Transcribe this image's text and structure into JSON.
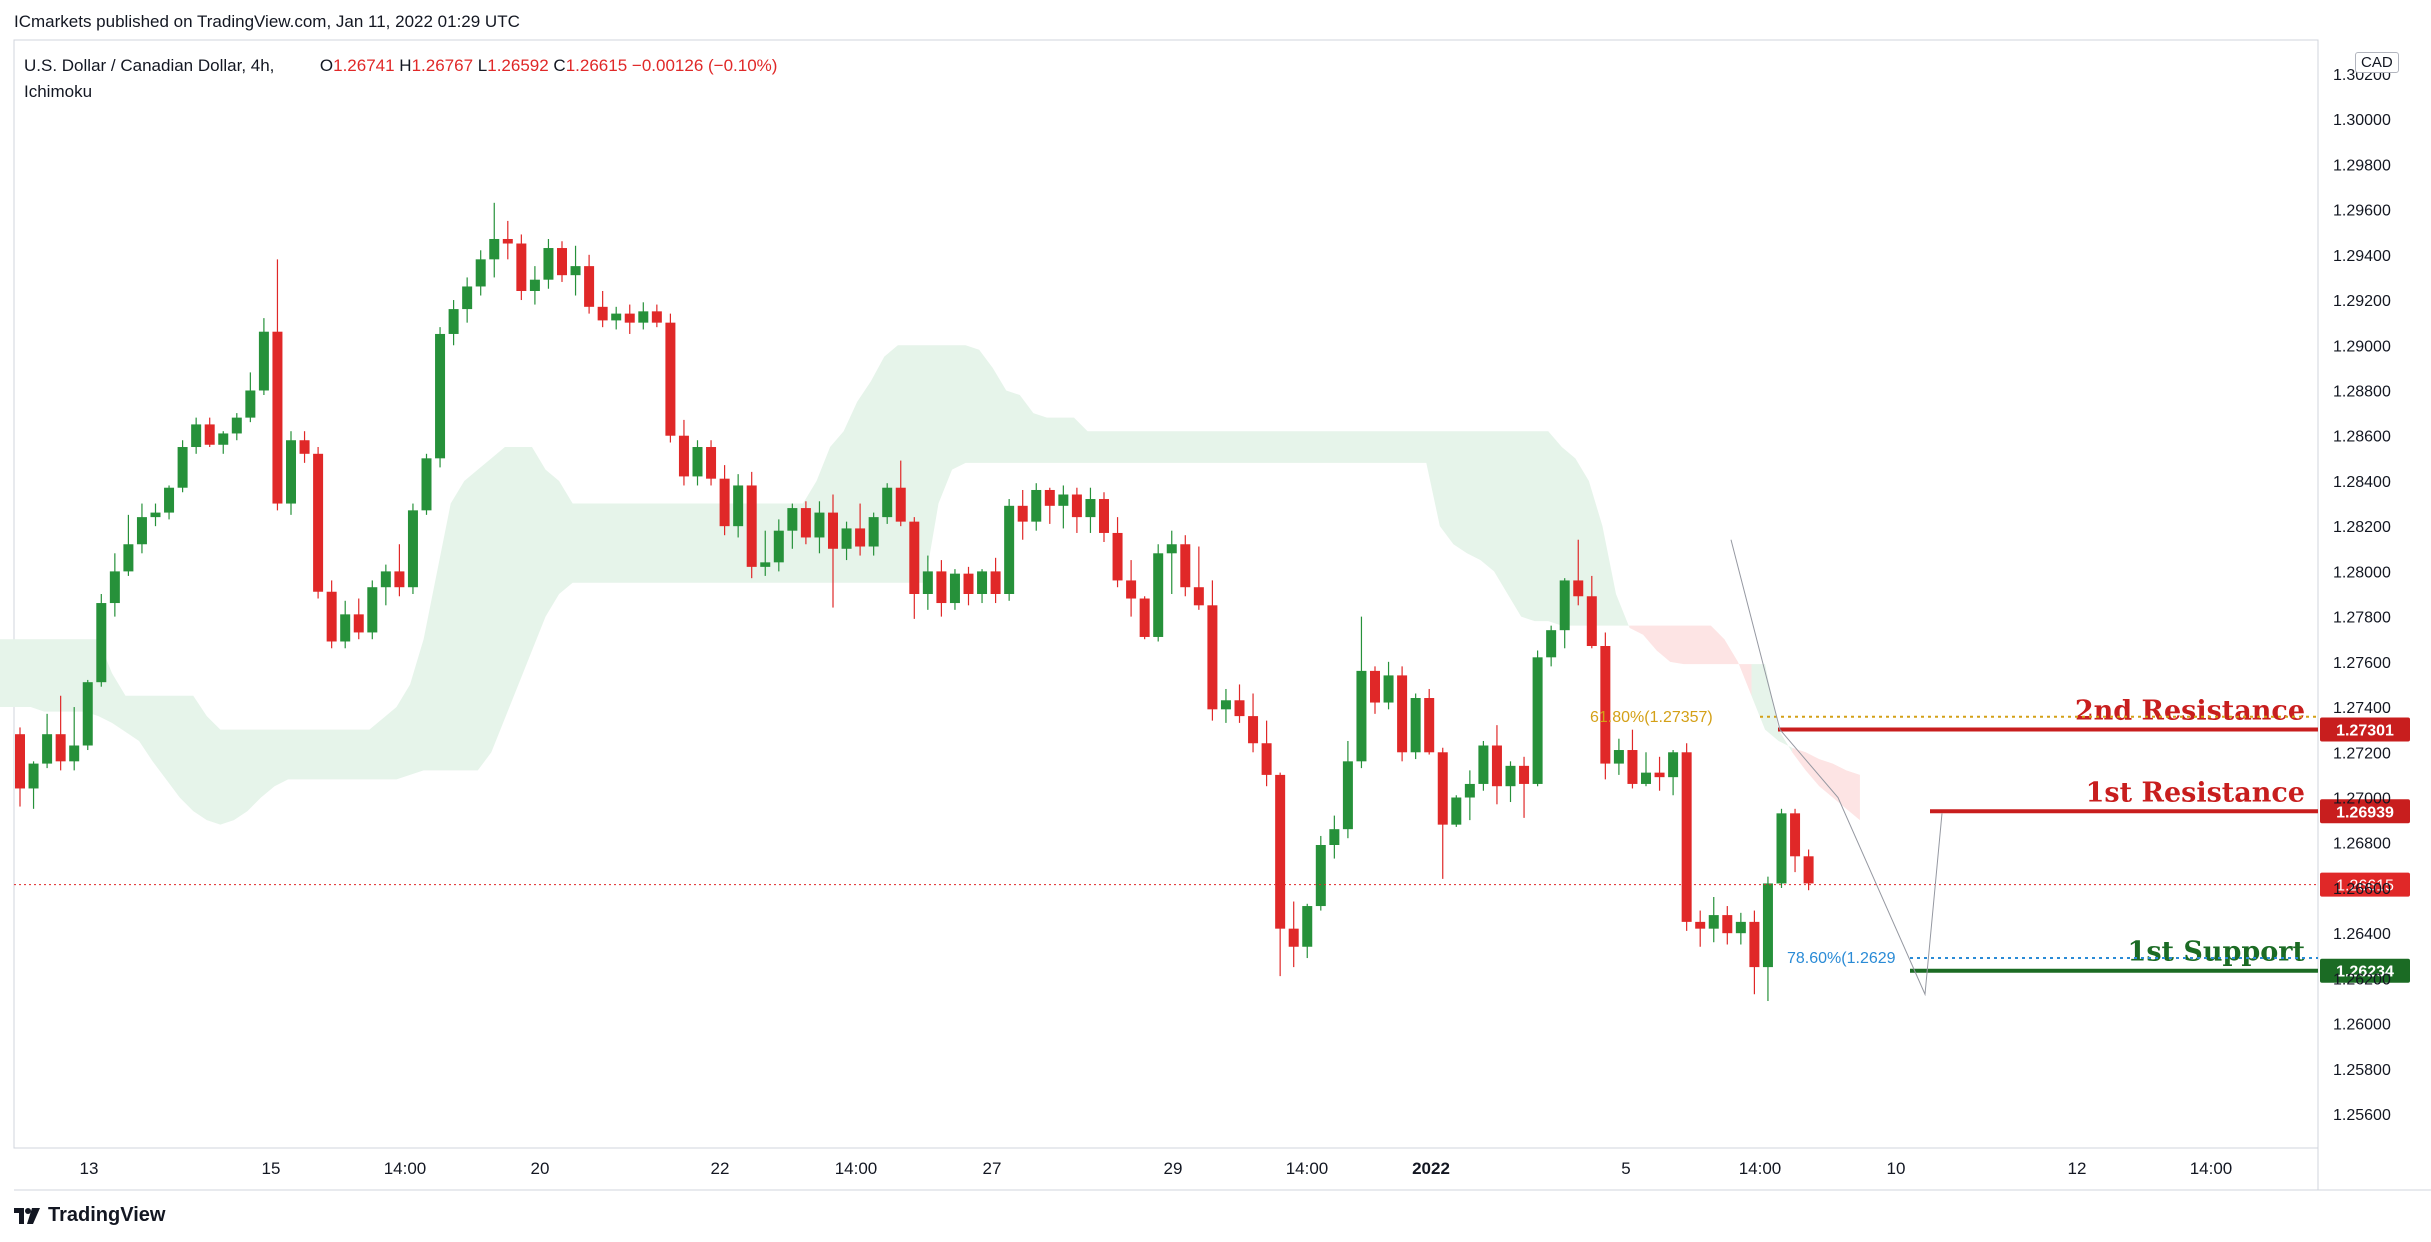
{
  "header": {
    "published_by": "ICmarkets published on TradingView.com, Jan 11, 2022 01:29 UTC"
  },
  "legend": {
    "symbol": "U.S. Dollar / Canadian Dollar, 4h,",
    "indicator": "Ichimoku",
    "open_label": "O",
    "open": "1.26741",
    "high_label": "H",
    "high": "1.26767",
    "low_label": "L",
    "low": "1.26592",
    "close_label": "C",
    "close": "1.26615",
    "change": "−0.00126 (−0.10%)"
  },
  "currency_badge": "CAD",
  "footer": {
    "brand": "TradingView"
  },
  "colors": {
    "up": "#26913a",
    "down": "#e02828",
    "resistance": "#c81e1e",
    "support": "#1b6b24",
    "cloud_bull": "#e6f4ea",
    "cloud_bear": "#fde4e4",
    "fib61": "#d4a017",
    "fib78": "#2a8bd6"
  },
  "chart_data": {
    "type": "candlestick",
    "interval": "4h",
    "y_axis": {
      "ticks": [
        "1.25600",
        "1.25800",
        "1.26000",
        "1.26200",
        "1.26400",
        "1.26600",
        "1.26800",
        "1.27000",
        "1.27200",
        "1.27400",
        "1.27600",
        "1.27800",
        "1.28000",
        "1.28200",
        "1.28400",
        "1.28600",
        "1.28800",
        "1.29000",
        "1.29200",
        "1.29400",
        "1.29600",
        "1.29800",
        "1.30000",
        "1.30200"
      ],
      "position": "right"
    },
    "x_axis": {
      "ticks": [
        "13",
        "15",
        "14:00",
        "20",
        "22",
        "14:00",
        "27",
        "29",
        "14:00",
        "2022",
        "5",
        "14:00",
        "10",
        "12",
        "14:00"
      ]
    },
    "ylim": [
      1.2545,
      1.3035
    ],
    "candles": [
      [
        1.2728,
        1.2731,
        1.2696,
        1.2704
      ],
      [
        1.2704,
        1.2716,
        1.2695,
        1.2715
      ],
      [
        1.2715,
        1.2737,
        1.2713,
        1.2728
      ],
      [
        1.2728,
        1.2745,
        1.2712,
        1.2716
      ],
      [
        1.2716,
        1.274,
        1.2712,
        1.2723
      ],
      [
        1.2723,
        1.2752,
        1.2721,
        1.2751
      ],
      [
        1.2751,
        1.279,
        1.2749,
        1.2786
      ],
      [
        1.2786,
        1.2808,
        1.278,
        1.28
      ],
      [
        1.28,
        1.2825,
        1.2798,
        1.2812
      ],
      [
        1.2812,
        1.283,
        1.2808,
        1.2824
      ],
      [
        1.2824,
        1.283,
        1.282,
        1.2826
      ],
      [
        1.2826,
        1.2838,
        1.2823,
        1.2837
      ],
      [
        1.2837,
        1.2858,
        1.2835,
        1.2855
      ],
      [
        1.2855,
        1.2868,
        1.2852,
        1.2865
      ],
      [
        1.2865,
        1.2868,
        1.2855,
        1.2856
      ],
      [
        1.2856,
        1.2862,
        1.2852,
        1.2861
      ],
      [
        1.2861,
        1.287,
        1.2858,
        1.2868
      ],
      [
        1.2868,
        1.2888,
        1.2866,
        1.288
      ],
      [
        1.288,
        1.2912,
        1.2878,
        1.2906
      ],
      [
        1.2906,
        1.2938,
        1.2827,
        1.283
      ],
      [
        1.283,
        1.2862,
        1.2825,
        1.2858
      ],
      [
        1.2858,
        1.2862,
        1.2848,
        1.2852
      ],
      [
        1.2852,
        1.2855,
        1.2788,
        1.2791
      ],
      [
        1.2791,
        1.2796,
        1.2766,
        1.2769
      ],
      [
        1.2769,
        1.2787,
        1.2766,
        1.2781
      ],
      [
        1.2781,
        1.2788,
        1.277,
        1.2773
      ],
      [
        1.2773,
        1.2796,
        1.277,
        1.2793
      ],
      [
        1.2793,
        1.2803,
        1.2785,
        1.28
      ],
      [
        1.28,
        1.2812,
        1.2789,
        1.2793
      ],
      [
        1.2793,
        1.283,
        1.279,
        1.2827
      ],
      [
        1.2827,
        1.2852,
        1.2825,
        1.285
      ],
      [
        1.285,
        1.2908,
        1.2846,
        1.2905
      ],
      [
        1.2905,
        1.292,
        1.29,
        1.2916
      ],
      [
        1.2916,
        1.293,
        1.291,
        1.2926
      ],
      [
        1.2926,
        1.2942,
        1.2922,
        1.2938
      ],
      [
        1.2938,
        1.2963,
        1.293,
        1.2947
      ],
      [
        1.2947,
        1.2955,
        1.2938,
        1.2945
      ],
      [
        1.2945,
        1.2949,
        1.292,
        1.2924
      ],
      [
        1.2924,
        1.2935,
        1.2918,
        1.2929
      ],
      [
        1.2929,
        1.2947,
        1.2925,
        1.2943
      ],
      [
        1.2943,
        1.2946,
        1.2928,
        1.2931
      ],
      [
        1.2931,
        1.2944,
        1.2922,
        1.2935
      ],
      [
        1.2935,
        1.294,
        1.2914,
        1.2917
      ],
      [
        1.2917,
        1.2924,
        1.2908,
        1.2911
      ],
      [
        1.2911,
        1.2917,
        1.2907,
        1.2914
      ],
      [
        1.2914,
        1.2918,
        1.2905,
        1.291
      ],
      [
        1.291,
        1.2919,
        1.2907,
        1.2915
      ],
      [
        1.2915,
        1.2918,
        1.2908,
        1.291
      ],
      [
        1.291,
        1.2914,
        1.2857,
        1.286
      ],
      [
        1.286,
        1.2867,
        1.2838,
        1.2842
      ],
      [
        1.2842,
        1.2858,
        1.2838,
        1.2855
      ],
      [
        1.2855,
        1.2858,
        1.2838,
        1.2841
      ],
      [
        1.2841,
        1.2847,
        1.2816,
        1.282
      ],
      [
        1.282,
        1.2843,
        1.2815,
        1.2838
      ],
      [
        1.2838,
        1.2844,
        1.2797,
        1.2802
      ],
      [
        1.2802,
        1.2818,
        1.2798,
        1.2804
      ],
      [
        1.2804,
        1.2823,
        1.28,
        1.2818
      ],
      [
        1.2818,
        1.283,
        1.281,
        1.2828
      ],
      [
        1.2828,
        1.2831,
        1.2812,
        1.2815
      ],
      [
        1.2815,
        1.2831,
        1.2808,
        1.2826
      ],
      [
        1.2826,
        1.2834,
        1.2784,
        1.281
      ],
      [
        1.281,
        1.2822,
        1.2805,
        1.2819
      ],
      [
        1.2819,
        1.283,
        1.2807,
        1.2811
      ],
      [
        1.2811,
        1.2826,
        1.2807,
        1.2824
      ],
      [
        1.2824,
        1.2839,
        1.2821,
        1.2837
      ],
      [
        1.2837,
        1.2849,
        1.282,
        1.2822
      ],
      [
        1.2822,
        1.2824,
        1.2779,
        1.279
      ],
      [
        1.279,
        1.2807,
        1.2783,
        1.28
      ],
      [
        1.28,
        1.2805,
        1.278,
        1.2786
      ],
      [
        1.2786,
        1.2801,
        1.2783,
        1.2799
      ],
      [
        1.2799,
        1.2802,
        1.2785,
        1.279
      ],
      [
        1.279,
        1.2801,
        1.2786,
        1.28
      ],
      [
        1.28,
        1.2806,
        1.2786,
        1.279
      ],
      [
        1.279,
        1.2832,
        1.2787,
        1.2829
      ],
      [
        1.2829,
        1.2836,
        1.2814,
        1.2822
      ],
      [
        1.2822,
        1.2839,
        1.2818,
        1.2836
      ],
      [
        1.2836,
        1.2837,
        1.2821,
        1.2829
      ],
      [
        1.2829,
        1.2838,
        1.2819,
        1.2834
      ],
      [
        1.2834,
        1.2837,
        1.2817,
        1.2824
      ],
      [
        1.2824,
        1.2837,
        1.2817,
        1.2832
      ],
      [
        1.2832,
        1.2835,
        1.2813,
        1.2817
      ],
      [
        1.2817,
        1.2824,
        1.2793,
        1.2796
      ],
      [
        1.2796,
        1.2805,
        1.278,
        1.2788
      ],
      [
        1.2788,
        1.2789,
        1.277,
        1.2771
      ],
      [
        1.2771,
        1.2812,
        1.2769,
        1.2808
      ],
      [
        1.2808,
        1.2818,
        1.279,
        1.2812
      ],
      [
        1.2812,
        1.2816,
        1.2789,
        1.2793
      ],
      [
        1.2793,
        1.2811,
        1.2783,
        1.2785
      ],
      [
        1.2785,
        1.2796,
        1.2734,
        1.2739
      ],
      [
        1.2739,
        1.2748,
        1.2733,
        1.2743
      ],
      [
        1.2743,
        1.275,
        1.2733,
        1.2736
      ],
      [
        1.2736,
        1.2746,
        1.272,
        1.2724
      ],
      [
        1.2724,
        1.2734,
        1.2705,
        1.271
      ],
      [
        1.271,
        1.2711,
        1.2621,
        1.2642
      ],
      [
        1.2642,
        1.2654,
        1.2625,
        1.2634
      ],
      [
        1.2634,
        1.2653,
        1.2629,
        1.2652
      ],
      [
        1.2652,
        1.2683,
        1.265,
        1.2679
      ],
      [
        1.2679,
        1.2692,
        1.2673,
        1.2686
      ],
      [
        1.2686,
        1.2725,
        1.2682,
        1.2716
      ],
      [
        1.2716,
        1.278,
        1.2713,
        1.2756
      ],
      [
        1.2756,
        1.2758,
        1.2737,
        1.2742
      ],
      [
        1.2742,
        1.276,
        1.2739,
        1.2754
      ],
      [
        1.2754,
        1.2758,
        1.2716,
        1.272
      ],
      [
        1.272,
        1.2746,
        1.2717,
        1.2744
      ],
      [
        1.2744,
        1.2748,
        1.2719,
        1.272
      ],
      [
        1.272,
        1.2722,
        1.2664,
        1.2688
      ],
      [
        1.2688,
        1.2701,
        1.2687,
        1.27
      ],
      [
        1.27,
        1.2712,
        1.269,
        1.2706
      ],
      [
        1.2706,
        1.2725,
        1.2703,
        1.2723
      ],
      [
        1.2723,
        1.2732,
        1.2697,
        1.2705
      ],
      [
        1.2705,
        1.2716,
        1.2698,
        1.2714
      ],
      [
        1.2714,
        1.2718,
        1.2691,
        1.2706
      ],
      [
        1.2706,
        1.2765,
        1.2705,
        1.2762
      ],
      [
        1.2762,
        1.2776,
        1.2758,
        1.2774
      ],
      [
        1.2774,
        1.2797,
        1.2766,
        1.2796
      ],
      [
        1.2796,
        1.2814,
        1.2785,
        1.2789
      ],
      [
        1.2789,
        1.2798,
        1.2766,
        1.2767
      ],
      [
        1.2767,
        1.2773,
        1.2708,
        1.2715
      ],
      [
        1.2715,
        1.2726,
        1.271,
        1.2721
      ],
      [
        1.2721,
        1.273,
        1.2704,
        1.2706
      ],
      [
        1.2706,
        1.272,
        1.2705,
        1.2711
      ],
      [
        1.2711,
        1.2718,
        1.2703,
        1.2709
      ],
      [
        1.2709,
        1.2721,
        1.2701,
        1.272
      ],
      [
        1.272,
        1.2724,
        1.2641,
        1.2645
      ],
      [
        1.2645,
        1.265,
        1.2634,
        1.2642
      ],
      [
        1.2642,
        1.2656,
        1.2636,
        1.2648
      ],
      [
        1.2648,
        1.2652,
        1.2635,
        1.264
      ],
      [
        1.264,
        1.2649,
        1.2635,
        1.2645
      ],
      [
        1.2645,
        1.265,
        1.2613,
        1.2625
      ],
      [
        1.2625,
        1.2665,
        1.261,
        1.2662
      ],
      [
        1.2662,
        1.2695,
        1.266,
        1.2693
      ],
      [
        1.2693,
        1.2695,
        1.2667,
        1.2674
      ],
      [
        1.2674,
        1.2677,
        1.2659,
        1.2662
      ]
    ],
    "ichimoku_cloud": {
      "senkou_a": [
        1.277,
        1.277,
        1.277,
        1.277,
        1.277,
        1.277,
        1.277,
        1.277,
        1.277,
        1.2755,
        1.2745,
        1.2745,
        1.2745,
        1.2745,
        1.2745,
        1.2745,
        1.2736,
        1.273,
        1.273,
        1.273,
        1.273,
        1.273,
        1.273,
        1.273,
        1.273,
        1.273,
        1.273,
        1.273,
        1.273,
        1.2735,
        1.274,
        1.275,
        1.277,
        1.28,
        1.283,
        1.284,
        1.2845,
        1.285,
        1.2855,
        1.2855,
        1.2855,
        1.2845,
        1.284,
        1.283,
        1.283,
        1.283,
        1.283,
        1.283,
        1.283,
        1.283,
        1.283,
        1.283,
        1.283,
        1.283,
        1.283,
        1.283,
        1.283,
        1.283,
        1.283,
        1.283,
        1.283,
        1.284,
        1.2855,
        1.2862,
        1.2875,
        1.2884,
        1.2895,
        1.29,
        1.29,
        1.29,
        1.29,
        1.29,
        1.29,
        1.2898,
        1.289,
        1.288,
        1.2878,
        1.287,
        1.2868,
        1.2868,
        1.2868,
        1.2862,
        1.2862,
        1.2862,
        1.2862,
        1.2862,
        1.2862,
        1.2862,
        1.2862,
        1.2862,
        1.2862,
        1.2862,
        1.2862,
        1.2862,
        1.2862,
        1.2862,
        1.2862,
        1.2862,
        1.2862,
        1.2862,
        1.2862,
        1.2862,
        1.2862,
        1.2862,
        1.2862,
        1.2862,
        1.2862,
        1.2862,
        1.2862,
        1.2862,
        1.2862,
        1.2862,
        1.2862,
        1.2862,
        1.2862,
        1.2862,
        1.2855,
        1.285,
        1.284,
        1.282,
        1.279,
        1.2775,
        1.2772,
        1.2765,
        1.276,
        1.2759,
        1.2759,
        1.2759,
        1.2759,
        1.2759,
        1.2759,
        1.2759,
        1.273,
        1.272,
        1.2712,
        1.2705,
        1.27,
        1.2695,
        1.269
      ],
      "senkou_b": [
        1.274,
        1.274,
        1.274,
        1.274,
        1.2738,
        1.2738,
        1.2738,
        1.2738,
        1.2736,
        1.2733,
        1.2729,
        1.2725,
        1.2716,
        1.2708,
        1.27,
        1.2694,
        1.269,
        1.2688,
        1.269,
        1.2694,
        1.27,
        1.2705,
        1.2708,
        1.2708,
        1.2708,
        1.2708,
        1.2708,
        1.2708,
        1.2708,
        1.2708,
        1.2708,
        1.271,
        1.2712,
        1.2712,
        1.2712,
        1.2712,
        1.2712,
        1.272,
        1.2735,
        1.275,
        1.2765,
        1.278,
        1.279,
        1.2795,
        1.2795,
        1.2795,
        1.2795,
        1.2795,
        1.2795,
        1.2795,
        1.2795,
        1.2795,
        1.2795,
        1.2795,
        1.2795,
        1.2795,
        1.2795,
        1.2795,
        1.2795,
        1.2795,
        1.2795,
        1.2795,
        1.2795,
        1.2795,
        1.2795,
        1.2795,
        1.2795,
        1.2795,
        1.2795,
        1.2795,
        1.283,
        1.2845,
        1.2848,
        1.2848,
        1.2848,
        1.2848,
        1.2848,
        1.2848,
        1.2848,
        1.2848,
        1.2848,
        1.2848,
        1.2848,
        1.2848,
        1.2848,
        1.2848,
        1.2848,
        1.2848,
        1.2848,
        1.2848,
        1.2848,
        1.2848,
        1.2848,
        1.2848,
        1.2848,
        1.2848,
        1.2848,
        1.2848,
        1.2848,
        1.2848,
        1.2848,
        1.2848,
        1.2848,
        1.2848,
        1.2848,
        1.2848,
        1.2848,
        1.282,
        1.2812,
        1.2808,
        1.2805,
        1.28,
        1.279,
        1.278,
        1.2778,
        1.2778,
        1.2776,
        1.2776,
        1.2776,
        1.2776,
        1.2776,
        1.2776,
        1.2776,
        1.2776,
        1.2776,
        1.2776,
        1.2776,
        1.2776,
        1.277,
        1.276,
        1.2745,
        1.273,
        1.2725,
        1.2722,
        1.272,
        1.2717,
        1.2715,
        1.2712,
        1.271
      ]
    },
    "levels": [
      {
        "name": "2nd Resistance",
        "value": 1.27301,
        "label": "1.27301"
      },
      {
        "name": "1st Resistance",
        "value": 1.26939,
        "label": "1.26939"
      },
      {
        "name": "1st Support",
        "value": 1.26234,
        "label": "1.26234"
      }
    ],
    "current_price": {
      "value": 1.26615,
      "label": "1.26615"
    },
    "fibonacci": [
      {
        "label": "61.80%(1.27357)",
        "value": 1.27357
      },
      {
        "label": "78.60%(1.2629",
        "value": 1.2629
      }
    ]
  }
}
